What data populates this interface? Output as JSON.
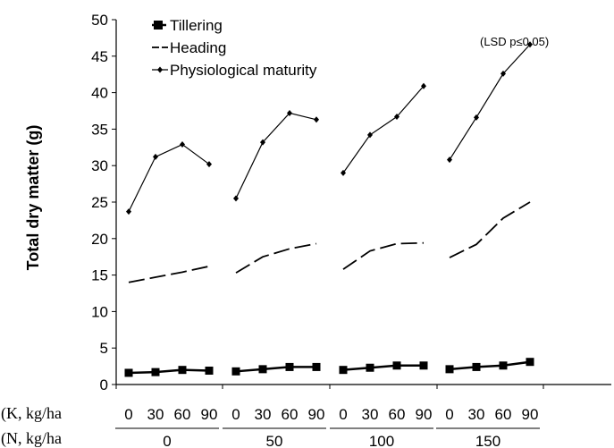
{
  "chart_data": {
    "type": "line",
    "ylabel": "Total dry matter (g)",
    "ylim": [
      0,
      50
    ],
    "yticks": [
      0,
      5,
      10,
      15,
      20,
      25,
      30,
      35,
      40,
      45,
      50
    ],
    "annotation": "(LSD p≤0.05)",
    "row_labels": {
      "k": "(K, kg/ha",
      "n": "(N, kg/ha"
    },
    "groups": [
      "0",
      "50",
      "100",
      "150"
    ],
    "k_levels": [
      "0",
      "30",
      "60",
      "90"
    ],
    "legend_position": "top-left",
    "series": [
      {
        "name": "Tillering",
        "style": "solid-square",
        "values": [
          [
            1.6,
            1.7,
            2.0,
            1.9
          ],
          [
            1.8,
            2.1,
            2.4,
            2.4
          ],
          [
            2.0,
            2.3,
            2.6,
            2.6
          ],
          [
            2.1,
            2.4,
            2.6,
            3.1
          ]
        ]
      },
      {
        "name": "Heading",
        "style": "dashed",
        "values": [
          [
            14.0,
            14.7,
            15.4,
            16.2
          ],
          [
            15.3,
            17.5,
            18.6,
            19.3
          ],
          [
            15.8,
            18.3,
            19.3,
            19.4
          ],
          [
            17.4,
            19.2,
            22.8,
            25.0
          ]
        ]
      },
      {
        "name": "Physiological maturity",
        "style": "solid-diamond",
        "values": [
          [
            23.7,
            31.2,
            32.9,
            30.2
          ],
          [
            25.5,
            33.2,
            37.2,
            36.3
          ],
          [
            29.0,
            34.2,
            36.7,
            40.9
          ],
          [
            30.8,
            36.6,
            42.6,
            46.6
          ]
        ]
      }
    ]
  }
}
